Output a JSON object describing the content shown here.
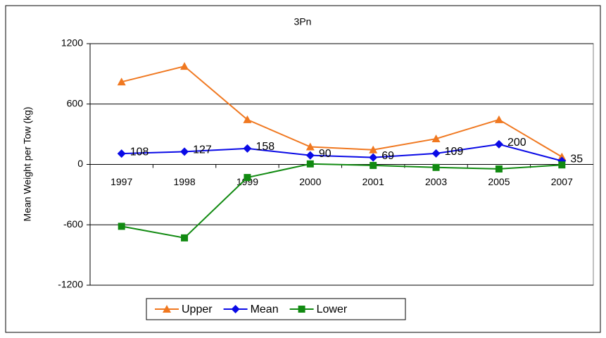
{
  "chart_data": {
    "type": "line",
    "title": "3Pn",
    "y_label": "Mean Weight per Tow (kg)",
    "categories": [
      "1997",
      "1998",
      "1999",
      "2000",
      "2001",
      "2003",
      "2005",
      "2007"
    ],
    "series": [
      {
        "name": "Upper",
        "color": "#f07820",
        "marker": "triangle",
        "values": [
          820,
          975,
          445,
          175,
          145,
          255,
          445,
          75
        ]
      },
      {
        "name": "Mean",
        "color": "#0a0ae6",
        "marker": "diamond",
        "values": [
          108,
          127,
          158,
          90,
          69,
          109,
          200,
          35
        ],
        "data_labels": true
      },
      {
        "name": "Lower",
        "color": "#118a11",
        "marker": "square",
        "values": [
          -615,
          -730,
          -130,
          5,
          -10,
          -30,
          -45,
          -5
        ]
      }
    ],
    "ylim": [
      -1200,
      1200
    ],
    "yticks": [
      -1200,
      -600,
      0,
      600,
      1200
    ],
    "grid": true,
    "legend": "bottom"
  }
}
